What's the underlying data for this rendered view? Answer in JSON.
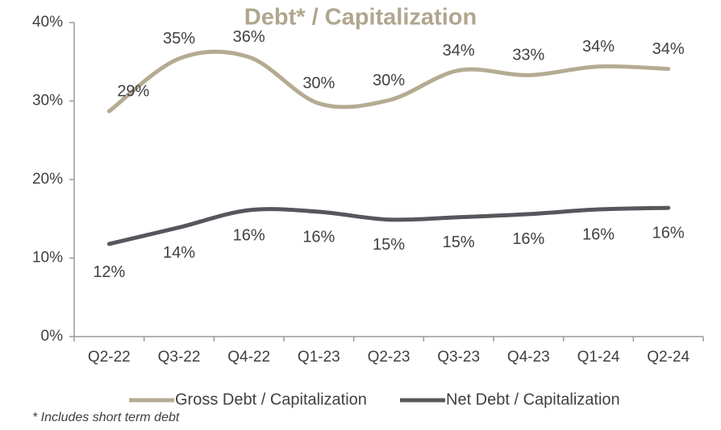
{
  "chart_data": {
    "type": "line",
    "title": "Debt* / Capitalization",
    "footnote": "* Includes short term debt",
    "categories": [
      "Q2-22",
      "Q3-22",
      "Q4-22",
      "Q1-23",
      "Q2-23",
      "Q3-23",
      "Q4-23",
      "Q1-24",
      "Q2-24"
    ],
    "series": [
      {
        "name": "Gross Debt / Capitalization",
        "color": "#b5ab93",
        "values": [
          28.7,
          35.4,
          35.6,
          29.7,
          30.1,
          33.9,
          33.3,
          34.4,
          34.1
        ],
        "value_labels": [
          "29%",
          "35%",
          "36%",
          "30%",
          "30%",
          "34%",
          "33%",
          "34%",
          "34%"
        ]
      },
      {
        "name": "Net Debt / Capitalization",
        "color": "#55575c",
        "values": [
          11.8,
          13.9,
          16.1,
          15.9,
          14.9,
          15.2,
          15.6,
          16.2,
          16.4
        ],
        "value_labels": [
          "12%",
          "14%",
          "16%",
          "16%",
          "15%",
          "15%",
          "16%",
          "16%",
          "16%"
        ]
      }
    ],
    "ylim": [
      0,
      40
    ],
    "yticks": [
      {
        "value": 0,
        "label": "0%"
      },
      {
        "value": 10,
        "label": "10%"
      },
      {
        "value": 20,
        "label": "20%"
      },
      {
        "value": 30,
        "label": "30%"
      },
      {
        "value": 40,
        "label": "40%"
      }
    ],
    "legend": "bottom"
  }
}
